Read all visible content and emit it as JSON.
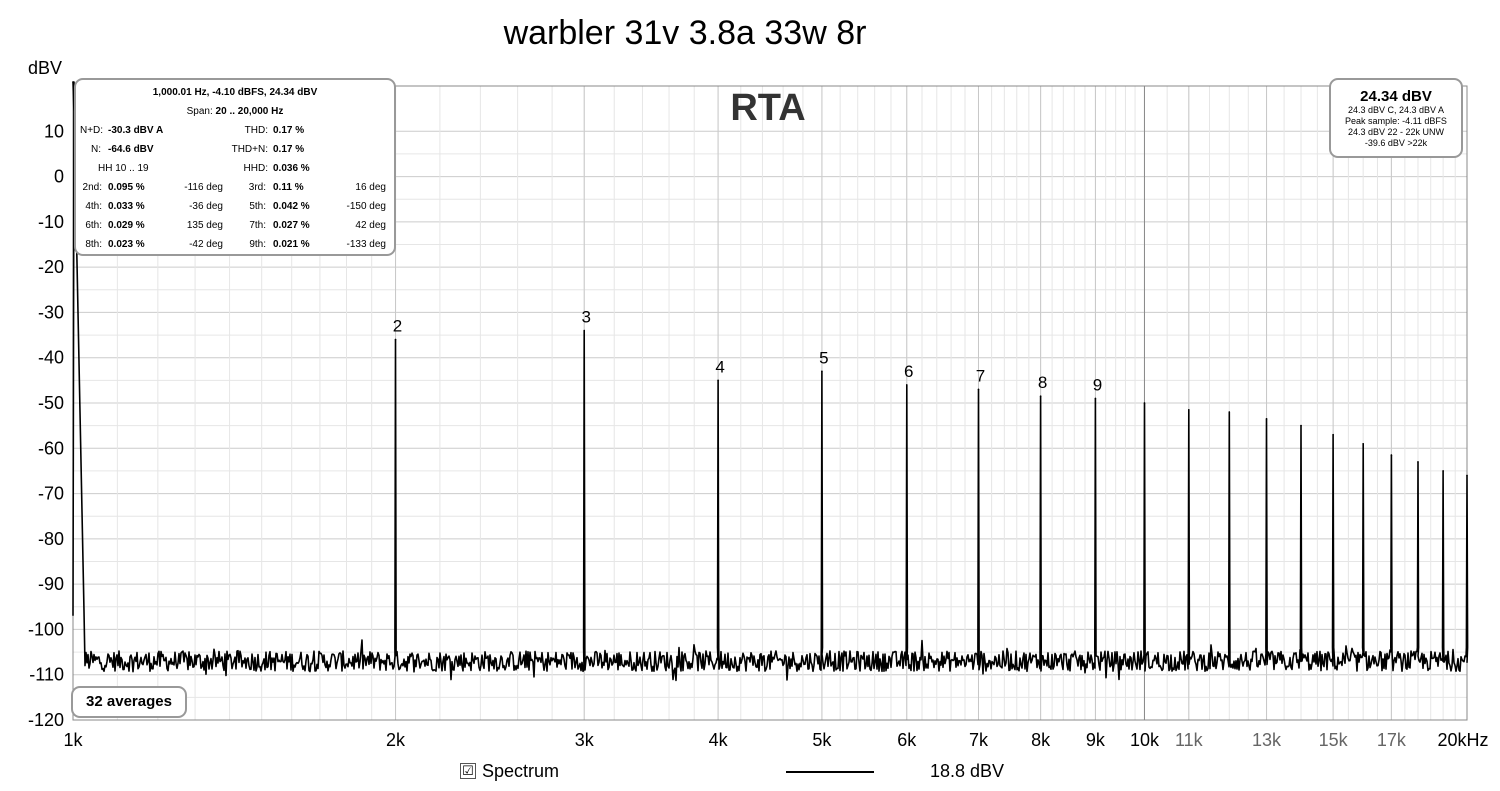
{
  "chart_data": {
    "type": "line",
    "title": "warbler 31v 3.8a 33w 8r",
    "watermark": "RTA",
    "ylabel": "dBV",
    "xlabel": "",
    "x_scale": "log",
    "xlim": [
      1000,
      20000
    ],
    "ylim": [
      -120,
      20
    ],
    "grid": true,
    "yticks": [
      "10",
      "0",
      "-10",
      "-20",
      "-30",
      "-40",
      "-50",
      "-60",
      "-70",
      "-80",
      "-90",
      "-100",
      "-110",
      "-120"
    ],
    "ytick_values": [
      10,
      0,
      -10,
      -20,
      -30,
      -40,
      -50,
      -60,
      -70,
      -80,
      -90,
      -100,
      -110,
      -120
    ],
    "xticks_major": [
      {
        "label": "1k",
        "value": 1000
      },
      {
        "label": "2k",
        "value": 2000
      },
      {
        "label": "3k",
        "value": 3000
      },
      {
        "label": "4k",
        "value": 4000
      },
      {
        "label": "5k",
        "value": 5000
      },
      {
        "label": "6k",
        "value": 6000
      },
      {
        "label": "7k",
        "value": 7000
      },
      {
        "label": "8k",
        "value": 8000
      },
      {
        "label": "9k",
        "value": 9000
      },
      {
        "label": "10k",
        "value": 10000
      },
      {
        "label": "20kHz",
        "value": 20000
      }
    ],
    "xticks_minor": [
      {
        "label": "11k",
        "value": 11000
      },
      {
        "label": "13k",
        "value": 13000
      },
      {
        "label": "15k",
        "value": 15000
      },
      {
        "label": "17k",
        "value": 17000
      }
    ],
    "noise_floor_dbv": -107,
    "series": [
      {
        "name": "Spectrum",
        "color": "#000000",
        "peaks": [
          {
            "freq": 1000,
            "dbv": 24.3,
            "label": ""
          },
          {
            "freq": 2000,
            "dbv": -36,
            "label": "2"
          },
          {
            "freq": 3000,
            "dbv": -34,
            "label": "3"
          },
          {
            "freq": 4000,
            "dbv": -45,
            "label": "4"
          },
          {
            "freq": 5000,
            "dbv": -43,
            "label": "5"
          },
          {
            "freq": 6000,
            "dbv": -46,
            "label": "6"
          },
          {
            "freq": 7000,
            "dbv": -47,
            "label": "7"
          },
          {
            "freq": 8000,
            "dbv": -48.5,
            "label": "8"
          },
          {
            "freq": 9000,
            "dbv": -49,
            "label": "9"
          },
          {
            "freq": 10000,
            "dbv": -50,
            "label": ""
          },
          {
            "freq": 11000,
            "dbv": -51.5,
            "label": ""
          },
          {
            "freq": 12000,
            "dbv": -52,
            "label": ""
          },
          {
            "freq": 13000,
            "dbv": -53.5,
            "label": ""
          },
          {
            "freq": 14000,
            "dbv": -55,
            "label": ""
          },
          {
            "freq": 15000,
            "dbv": -57,
            "label": ""
          },
          {
            "freq": 16000,
            "dbv": -59,
            "label": ""
          },
          {
            "freq": 17000,
            "dbv": -61.5,
            "label": ""
          },
          {
            "freq": 18000,
            "dbv": -63,
            "label": ""
          },
          {
            "freq": 19000,
            "dbv": -65,
            "label": ""
          },
          {
            "freq": 20000,
            "dbv": -66,
            "label": ""
          }
        ]
      }
    ]
  },
  "stats": {
    "header1": "1,000.01 Hz, -4.10 dBFS, 24.34 dBV",
    "header2_label": "Span:",
    "header2_value": "20 .. 20,000 Hz",
    "nd_label": "N+D:",
    "nd_value": "-30.3 dBV A",
    "thd_label": "THD:",
    "thd_value": "0.17 %",
    "n_label": "N:",
    "n_value": "-64.6 dBV",
    "thdn_label": "THD+N:",
    "thdn_value": "0.17 %",
    "hh_label": "HH 10 .. 19",
    "hhd_label": "HHD:",
    "hhd_value": "0.036 %",
    "harmonics": [
      {
        "l1": "2nd:",
        "v1": "0.095 %",
        "p1": "-116 deg",
        "l2": "3rd:",
        "v2": "0.11 %",
        "p2": "16 deg"
      },
      {
        "l1": "4th:",
        "v1": "0.033 %",
        "p1": "-36 deg",
        "l2": "5th:",
        "v2": "0.042 %",
        "p2": "-150 deg"
      },
      {
        "l1": "6th:",
        "v1": "0.029 %",
        "p1": "135 deg",
        "l2": "7th:",
        "v2": "0.027 %",
        "p2": "42 deg"
      },
      {
        "l1": "8th:",
        "v1": "0.023 %",
        "p1": "-42 deg",
        "l2": "9th:",
        "v2": "0.021 %",
        "p2": "-133 deg"
      }
    ]
  },
  "level": {
    "main": "24.34 dBV",
    "line1": "24.3 dBV C, 24.3 dBV A",
    "line2": "Peak sample: -4.11 dBFS",
    "line3": "24.3 dBV 22 - 22k UNW",
    "line4": "-39.6 dBV >22k"
  },
  "averages": "32 averages",
  "legend": {
    "checked": true,
    "check_glyph": "☑",
    "series_name": "Spectrum",
    "level": "18.8 dBV"
  }
}
